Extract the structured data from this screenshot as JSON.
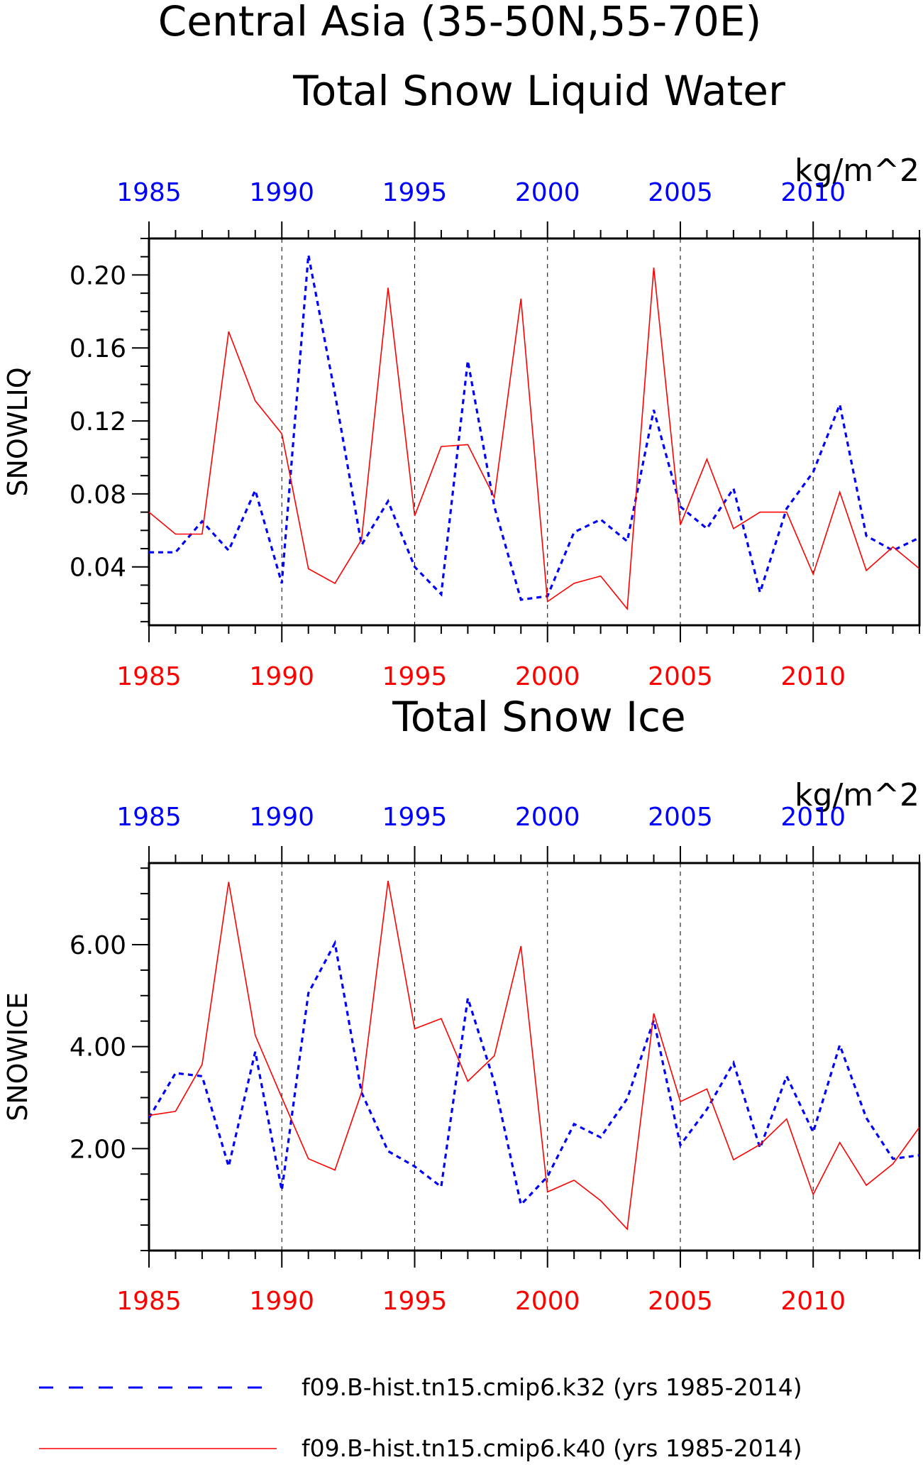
{
  "figure": {
    "title_line1": "Central Asia (35-50N,55-70E)"
  },
  "legend": {
    "entries": [
      {
        "label": "f09.B-hist.tn15.cmip6.k32 (yrs 1985-2014)",
        "color": "#0000ff",
        "style": "dashed"
      },
      {
        "label": "f09.B-hist.tn15.cmip6.k40 (yrs 1985-2014)",
        "color": "#ff0000",
        "style": "solid"
      }
    ]
  },
  "chart_data": [
    {
      "type": "line",
      "title": "Total Snow Liquid Water",
      "units": "kg/m^2",
      "ylabel": "SNOWLIQ",
      "xlim": [
        1985,
        2014
      ],
      "ylim": [
        0.008,
        0.22
      ],
      "yticks": [
        0.04,
        0.08,
        0.12,
        0.16,
        0.2
      ],
      "ytick_labels": [
        "0.04",
        "0.08",
        "0.12",
        "0.16",
        "0.20"
      ],
      "xticks": [
        1985,
        1990,
        1995,
        2000,
        2005,
        2010
      ],
      "xtick_labels": [
        "1985",
        "1990",
        "1995",
        "2000",
        "2005",
        "2010"
      ],
      "top_xtick_labels": [
        "1985",
        "1990",
        "1995",
        "2000",
        "2005",
        "2010"
      ],
      "top_axis_color": "#0000ff",
      "bottom_axis_color": "#ff0000",
      "grid": "vertical dashed lines at 1990, 1995, 2000, 2005, 2010",
      "x": [
        1985,
        1986,
        1987,
        1988,
        1989,
        1990,
        1991,
        1992,
        1993,
        1994,
        1995,
        1996,
        1997,
        1998,
        1999,
        2000,
        2001,
        2002,
        2003,
        2004,
        2005,
        2006,
        2007,
        2008,
        2009,
        2010,
        2011,
        2012,
        2013,
        2014
      ],
      "series": [
        {
          "name": "f09.B-hist.tn15.cmip6.k32 (yrs 1985-2014)",
          "color": "#0000ff",
          "style": "dashed",
          "values": [
            0.048,
            0.048,
            0.065,
            0.049,
            0.082,
            0.031,
            0.211,
            0.135,
            0.052,
            0.076,
            0.04,
            0.025,
            0.153,
            0.073,
            0.022,
            0.024,
            0.059,
            0.066,
            0.054,
            0.126,
            0.073,
            0.061,
            0.083,
            0.026,
            0.072,
            0.092,
            0.129,
            0.057,
            0.049,
            0.056
          ]
        },
        {
          "name": "f09.B-hist.tn15.cmip6.k40 (yrs 1985-2014)",
          "color": "#ff0000",
          "style": "solid",
          "values": [
            0.07,
            0.058,
            0.058,
            0.169,
            0.131,
            0.113,
            0.039,
            0.031,
            0.055,
            0.193,
            0.068,
            0.106,
            0.107,
            0.078,
            0.187,
            0.021,
            0.031,
            0.035,
            0.017,
            0.204,
            0.063,
            0.099,
            0.061,
            0.07,
            0.07,
            0.036,
            0.081,
            0.038,
            0.051,
            0.039
          ]
        }
      ]
    },
    {
      "type": "line",
      "title": "Total Snow Ice",
      "units": "kg/m^2",
      "ylabel": "SNOWICE",
      "xlim": [
        1985,
        2014
      ],
      "ylim": [
        0.0,
        7.6
      ],
      "yticks": [
        2.0,
        4.0,
        6.0
      ],
      "ytick_labels": [
        "2.00",
        "4.00",
        "6.00"
      ],
      "xticks": [
        1985,
        1990,
        1995,
        2000,
        2005,
        2010
      ],
      "xtick_labels": [
        "1985",
        "1990",
        "1995",
        "2000",
        "2005",
        "2010"
      ],
      "top_xtick_labels": [
        "1985",
        "1990",
        "1995",
        "2000",
        "2005",
        "2010"
      ],
      "top_axis_color": "#0000ff",
      "bottom_axis_color": "#ff0000",
      "grid": "vertical dashed lines at 1990, 1995, 2000, 2005, 2010",
      "x": [
        1985,
        1986,
        1987,
        1988,
        1989,
        1990,
        1991,
        1992,
        1993,
        1994,
        1995,
        1996,
        1997,
        1998,
        1999,
        2000,
        2001,
        2002,
        2003,
        2004,
        2005,
        2006,
        2007,
        2008,
        2009,
        2010,
        2011,
        2012,
        2013,
        2014
      ],
      "series": [
        {
          "name": "f09.B-hist.tn15.cmip6.k32 (yrs 1985-2014)",
          "color": "#0000ff",
          "style": "dashed",
          "values": [
            2.6,
            3.48,
            3.42,
            1.65,
            3.9,
            1.18,
            5.05,
            6.03,
            3.1,
            1.95,
            1.65,
            1.25,
            4.95,
            3.3,
            0.9,
            1.45,
            2.48,
            2.22,
            2.98,
            4.52,
            2.07,
            2.77,
            3.68,
            2.01,
            3.42,
            2.32,
            4.03,
            2.6,
            1.8,
            1.87
          ]
        },
        {
          "name": "f09.B-hist.tn15.cmip6.k40 (yrs 1985-2014)",
          "color": "#ff0000",
          "style": "solid",
          "values": [
            2.65,
            2.73,
            3.65,
            7.23,
            4.22,
            3.0,
            1.8,
            1.58,
            3.1,
            7.25,
            4.35,
            4.55,
            3.32,
            3.82,
            5.97,
            1.15,
            1.38,
            0.98,
            0.42,
            4.65,
            2.92,
            3.17,
            1.78,
            2.08,
            2.58,
            1.1,
            2.12,
            1.28,
            1.7,
            2.42
          ]
        }
      ]
    }
  ]
}
